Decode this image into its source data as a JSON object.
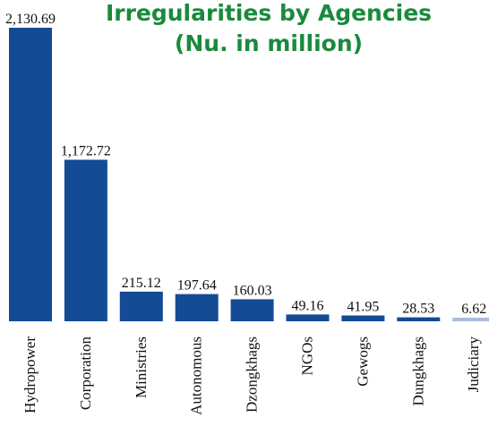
{
  "chart_data": {
    "type": "bar",
    "title": "Irregularities by  Agencies",
    "subtitle": "(Nu. in million)",
    "categories": [
      "Hydropower",
      "Corporation",
      "Ministries",
      "Autonomous",
      "Dzongkhags",
      "NGOs",
      "Gewogs",
      "Dungkhags",
      "Judiciary"
    ],
    "values": [
      2130.69,
      1172.72,
      215.12,
      197.64,
      160.03,
      49.16,
      41.95,
      28.53,
      6.62
    ],
    "data_labels": [
      "2,130.69",
      "1,172.72",
      "215.12",
      "197.64",
      "160.03",
      "49.16",
      "41.95",
      "28.53",
      "6.62"
    ],
    "xlabel": "",
    "ylabel": "",
    "ylim": [
      0,
      2130.69
    ],
    "grid": false,
    "legend": "none",
    "colors": {
      "bar": "#134b95",
      "last_bar": "#a9bbdb",
      "title": "#1a8a3c",
      "text": "#111111"
    }
  }
}
